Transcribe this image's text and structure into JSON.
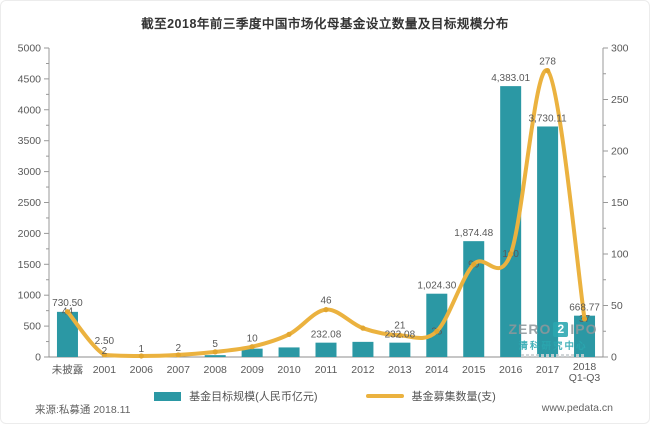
{
  "page": {
    "title": "截至2018年前三季度中国市场化母基金设立数量及目标规模分布",
    "source": "来源:私募通 2018.11",
    "website": "www.pedata.cn"
  },
  "watermark": {
    "zero": "ZERO",
    "two": "2",
    "ipo": "IPO",
    "subtitle": "清科研究中心"
  },
  "chart_data": {
    "type": "bar",
    "subtype": "bar+line combo, dual axis",
    "title": "截至2018年前三季度中国市场化母基金设立数量及目标规模分布",
    "categories": [
      "未披露",
      "2001",
      "2006",
      "2007",
      "2008",
      "2009",
      "2010",
      "2011",
      "2012",
      "2013",
      "2014",
      "2015",
      "2016",
      "2017",
      "2018\nQ1-Q3"
    ],
    "left_axis": {
      "min": 0,
      "max": 5000,
      "step": 500,
      "minor_step": 250
    },
    "right_axis": {
      "min": 0,
      "max": 300,
      "step": 50,
      "minor_step": 25
    },
    "grid": false,
    "legend_position": "bottom",
    "series": [
      {
        "name": "基金目标规模(人民币亿元)",
        "type": "bar",
        "axis": "left",
        "color": "#2B98A4",
        "values": [
          730.5,
          2.5,
          0,
          0,
          30,
          135,
          155,
          232.08,
          245,
          232.08,
          1024.3,
          1874.48,
          4383.01,
          3730.11,
          668.77
        ],
        "labels": [
          "730.50",
          "2.50",
          "",
          "",
          "",
          "",
          "",
          "232.08",
          "",
          "232.08",
          "1,024.30",
          "1,874.48",
          "4,383.01",
          "3,730.11",
          "668.77"
        ],
        "label_dy": [
          -6,
          -13,
          0,
          0,
          0,
          0,
          0,
          -5,
          0,
          -5,
          -5,
          -5,
          -5,
          -5,
          -5
        ]
      },
      {
        "name": "基金募集数量(支)",
        "type": "line",
        "axis": "right",
        "color": "#EBB23F",
        "point_color": "#E2A62F",
        "values": [
          44,
          2,
          1,
          2,
          5,
          10,
          22,
          46,
          28,
          21,
          25,
          90,
          100,
          278,
          37
        ],
        "labels": [
          "44",
          "2",
          "1",
          "2",
          "5",
          "10",
          "",
          "46",
          "",
          "21",
          "25",
          "90",
          "100",
          "278",
          "37"
        ],
        "label_mode": [
          "on",
          "above",
          "above",
          "above",
          "above",
          "above",
          "",
          "above",
          "",
          "above",
          "on",
          "on",
          "on",
          "above",
          "on"
        ],
        "label_dy": [
          3,
          -1,
          -4,
          -4,
          -5,
          -5,
          0,
          -6,
          0,
          -7,
          3,
          3,
          3,
          -6,
          3
        ]
      }
    ]
  }
}
